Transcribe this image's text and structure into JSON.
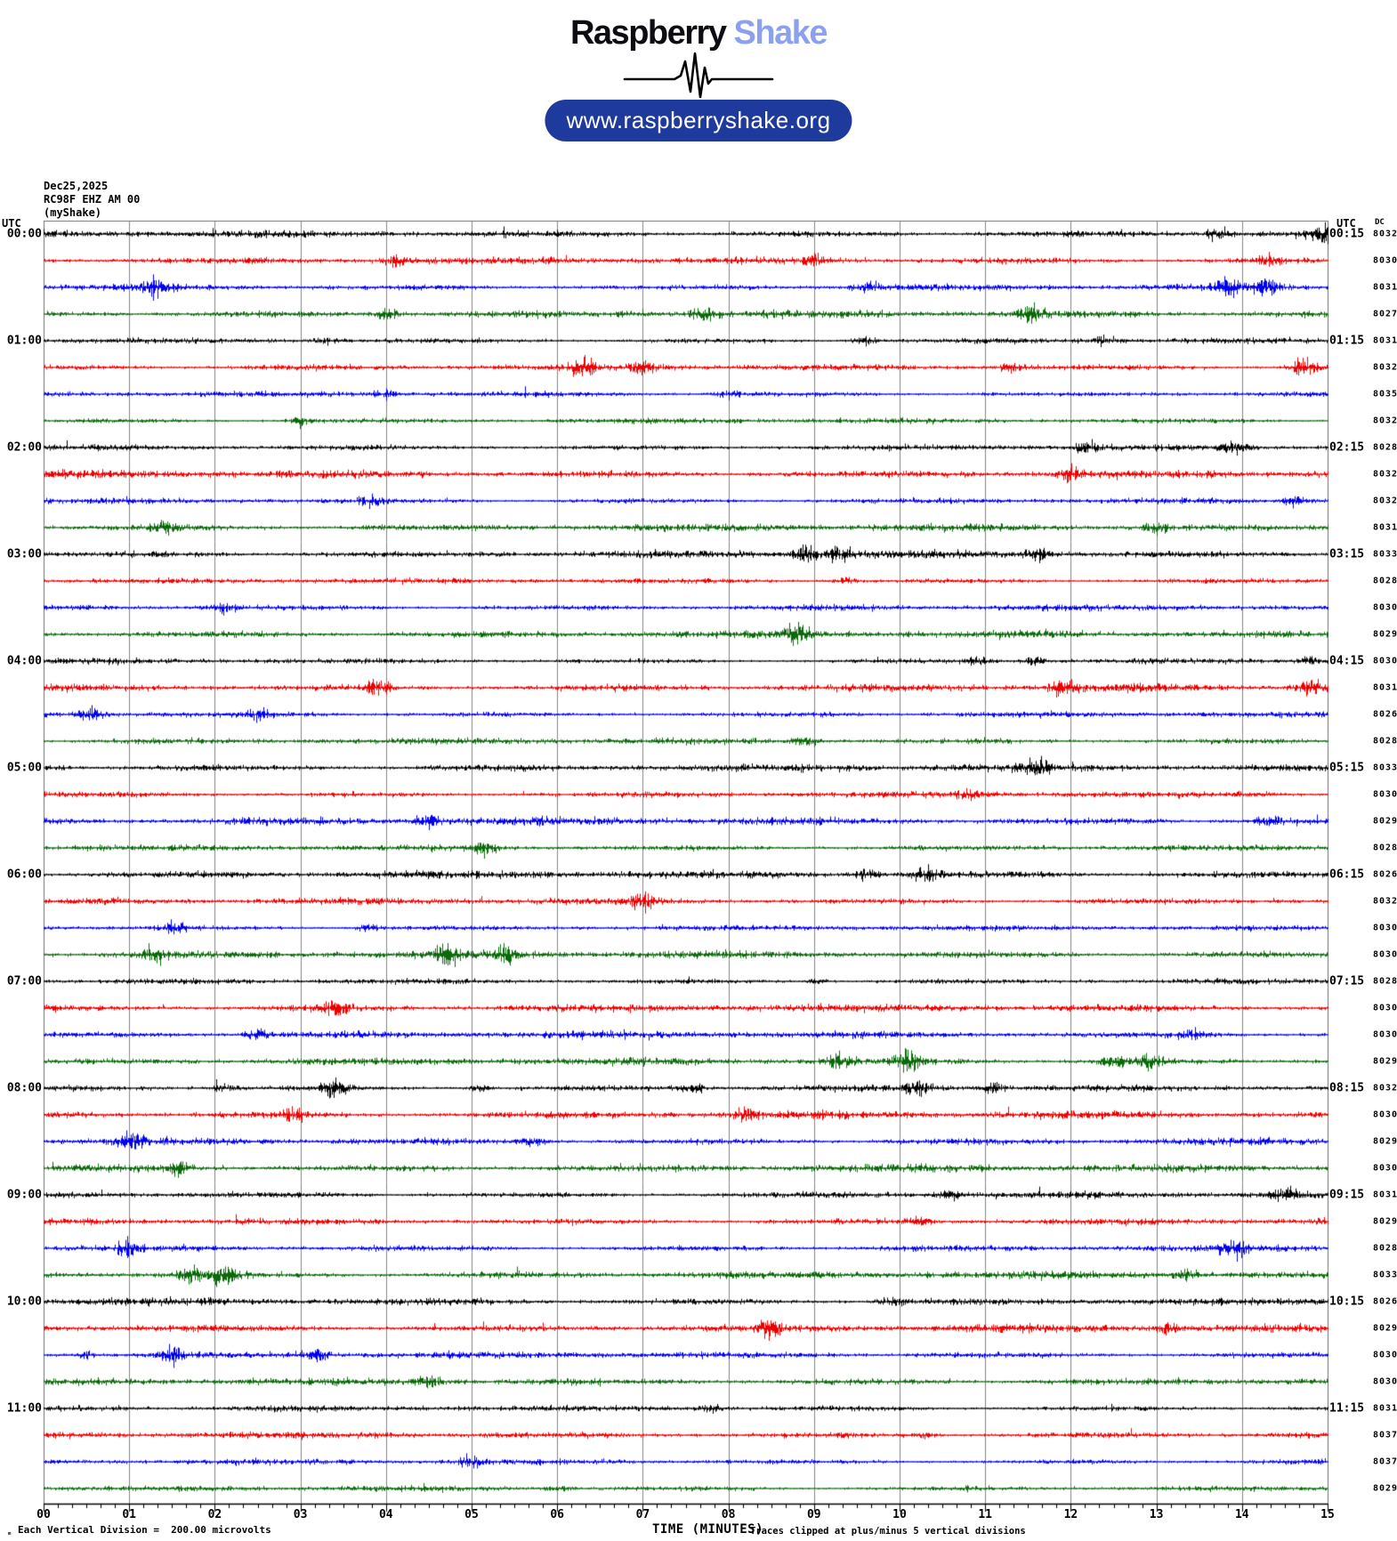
{
  "header": {
    "logo_primary": "Raspberry",
    "logo_secondary": " Shake",
    "url_label": "www.raspberryshake.org",
    "colors": {
      "logo_primary": "#0c0c12",
      "logo_secondary": "#8ba0ee",
      "pill_bg": "#1e3a9c",
      "pill_text": "#ffffff"
    }
  },
  "station": {
    "date": "Dec25,2025",
    "id_line": "RC98F EHZ AM 00",
    "network": "(myShake)"
  },
  "axes": {
    "utc_left_header": "UTC",
    "utc_right_header": "UTC",
    "dc_header": "DC",
    "left_times": [
      "00:00",
      "01:00",
      "02:00",
      "03:00",
      "04:00",
      "05:00",
      "06:00",
      "07:00",
      "08:00",
      "09:00",
      "10:00",
      "11:00"
    ],
    "right_times": [
      "00:15",
      "01:15",
      "02:15",
      "03:15",
      "04:15",
      "05:15",
      "06:15",
      "07:15",
      "08:15",
      "09:15",
      "10:15",
      "11:15"
    ],
    "x_ticks": [
      "00",
      "01",
      "02",
      "03",
      "04",
      "05",
      "06",
      "07",
      "08",
      "09",
      "10",
      "11",
      "12",
      "13",
      "14",
      "15"
    ]
  },
  "footer": {
    "scale_mark": "ₘ",
    "scale_note": "Each Vertical Division =  200.00 microvolts",
    "x_axis_title": "TIME (MINUTES)",
    "clip_note": "Traces clipped at plus/minus 5 vertical divisions"
  },
  "chart_data": {
    "type": "line",
    "variant": "helicorder-seismogram",
    "title": "RC98F EHZ AM 00",
    "date": "Dec25,2025",
    "xlabel": "TIME (MINUTES)",
    "xlim": [
      0,
      15
    ],
    "minutes_per_row": 15,
    "rows_count": 48,
    "utc_span": [
      "00:00",
      "12:00"
    ],
    "grid": "vertical-every-minute",
    "minor_ticks_seconds": 10,
    "scale_microvolts_per_division": 200.0,
    "clip_divisions": 5,
    "trace_color_cycle": [
      "black",
      "red",
      "blue",
      "green"
    ],
    "palette": {
      "black": "#000000",
      "red": "#ee0000",
      "blue": "#0000ee",
      "green": "#0a6a0a",
      "grid": "#848484",
      "border": "#707070"
    },
    "rows": [
      {
        "start": "00:00",
        "color": "black",
        "dc": 8032,
        "bursts": [
          [
            13.7,
            3.0
          ],
          [
            14.9,
            2.5
          ]
        ]
      },
      {
        "start": "00:15",
        "color": "red",
        "dc": 8030,
        "bursts": [
          [
            4.1,
            2.0
          ],
          [
            9.0,
            2.0
          ],
          [
            14.3,
            2.0
          ]
        ]
      },
      {
        "start": "00:30",
        "color": "blue",
        "dc": 8031,
        "bursts": [
          [
            1.3,
            2.5
          ],
          [
            9.6,
            2.0
          ],
          [
            13.8,
            2.5
          ],
          [
            14.3,
            3.0
          ]
        ]
      },
      {
        "start": "00:45",
        "color": "green",
        "dc": 8027,
        "bursts": [
          [
            4.0,
            2.8
          ],
          [
            7.7,
            2.0
          ],
          [
            11.5,
            2.2
          ]
        ]
      },
      {
        "start": "01:00",
        "color": "black",
        "dc": 8031,
        "bursts": [
          [
            3.3,
            2.2
          ],
          [
            9.6,
            2.0
          ],
          [
            12.4,
            2.2
          ]
        ]
      },
      {
        "start": "01:15",
        "color": "red",
        "dc": 8032,
        "bursts": [
          [
            6.3,
            2.2
          ],
          [
            7.0,
            2.0
          ],
          [
            11.3,
            2.5
          ],
          [
            14.7,
            5.5
          ]
        ]
      },
      {
        "start": "01:30",
        "color": "blue",
        "dc": 8035,
        "bursts": [
          [
            4.0,
            2.0
          ],
          [
            8.0,
            1.8
          ]
        ]
      },
      {
        "start": "01:45",
        "color": "green",
        "dc": 8032,
        "bursts": [
          [
            3.0,
            2.5
          ]
        ]
      },
      {
        "start": "02:00",
        "color": "black",
        "dc": 8028,
        "bursts": [
          [
            12.2,
            2.5
          ],
          [
            13.9,
            2.2
          ]
        ]
      },
      {
        "start": "02:15",
        "color": "red",
        "dc": 8032,
        "bursts": [
          [
            12.0,
            1.8
          ]
        ]
      },
      {
        "start": "02:30",
        "color": "blue",
        "dc": 8032,
        "bursts": [
          [
            3.8,
            1.8
          ],
          [
            14.6,
            3.0
          ]
        ]
      },
      {
        "start": "02:45",
        "color": "green",
        "dc": 8031,
        "bursts": [
          [
            1.4,
            1.8
          ],
          [
            13.0,
            1.8
          ]
        ]
      },
      {
        "start": "03:00",
        "color": "black",
        "dc": 8033,
        "bursts": [
          [
            8.9,
            3.2
          ],
          [
            9.3,
            2.5
          ],
          [
            11.6,
            2.2
          ]
        ]
      },
      {
        "start": "03:15",
        "color": "red",
        "dc": 8028,
        "bursts": [
          [
            9.4,
            2.8
          ]
        ]
      },
      {
        "start": "03:30",
        "color": "blue",
        "dc": 8030,
        "bursts": [
          [
            2.1,
            2.2
          ]
        ]
      },
      {
        "start": "03:45",
        "color": "green",
        "dc": 8029,
        "bursts": [
          [
            8.8,
            2.5
          ]
        ]
      },
      {
        "start": "04:00",
        "color": "black",
        "dc": 8030,
        "bursts": [
          [
            10.9,
            2.2
          ],
          [
            11.6,
            2.5
          ],
          [
            14.8,
            2.0
          ]
        ]
      },
      {
        "start": "04:15",
        "color": "red",
        "dc": 8031,
        "bursts": [
          [
            3.9,
            2.5
          ],
          [
            11.9,
            2.2
          ],
          [
            14.8,
            3.5
          ]
        ]
      },
      {
        "start": "04:30",
        "color": "blue",
        "dc": 8026,
        "bursts": [
          [
            0.55,
            3.5
          ],
          [
            2.5,
            2.0
          ]
        ]
      },
      {
        "start": "04:45",
        "color": "green",
        "dc": 8028,
        "bursts": [
          [
            8.9,
            2.2
          ]
        ]
      },
      {
        "start": "05:00",
        "color": "black",
        "dc": 8033,
        "bursts": [
          [
            11.6,
            1.8
          ]
        ]
      },
      {
        "start": "05:15",
        "color": "red",
        "dc": 8030,
        "bursts": [
          [
            10.8,
            1.8
          ]
        ]
      },
      {
        "start": "05:30",
        "color": "blue",
        "dc": 8029,
        "bursts": [
          [
            4.5,
            2.0
          ],
          [
            14.3,
            2.2
          ]
        ]
      },
      {
        "start": "05:45",
        "color": "green",
        "dc": 8028,
        "bursts": [
          [
            5.15,
            2.8
          ]
        ]
      },
      {
        "start": "06:00",
        "color": "black",
        "dc": 8026,
        "bursts": [
          [
            9.6,
            2.0
          ],
          [
            10.3,
            2.0
          ]
        ]
      },
      {
        "start": "06:15",
        "color": "red",
        "dc": 8032,
        "bursts": [
          [
            7.0,
            2.2
          ]
        ]
      },
      {
        "start": "06:30",
        "color": "blue",
        "dc": 8030,
        "bursts": [
          [
            1.5,
            2.2
          ],
          [
            3.8,
            2.2
          ]
        ]
      },
      {
        "start": "06:45",
        "color": "green",
        "dc": 8030,
        "bursts": [
          [
            1.3,
            2.0
          ],
          [
            4.7,
            2.2
          ],
          [
            5.4,
            2.2
          ]
        ]
      },
      {
        "start": "07:00",
        "color": "black",
        "dc": 8028,
        "bursts": [
          [
            9.0,
            1.8
          ]
        ]
      },
      {
        "start": "07:15",
        "color": "red",
        "dc": 8030,
        "bursts": [
          [
            3.4,
            2.2
          ]
        ]
      },
      {
        "start": "07:30",
        "color": "blue",
        "dc": 8030,
        "bursts": [
          [
            2.5,
            2.0
          ],
          [
            13.4,
            2.2
          ]
        ]
      },
      {
        "start": "07:45",
        "color": "green",
        "dc": 8029,
        "bursts": [
          [
            9.3,
            2.8
          ],
          [
            10.1,
            2.5
          ],
          [
            12.5,
            2.5
          ],
          [
            12.9,
            2.2
          ]
        ]
      },
      {
        "start": "08:00",
        "color": "black",
        "dc": 8032,
        "bursts": [
          [
            2.1,
            2.5
          ],
          [
            3.4,
            2.8
          ],
          [
            5.1,
            2.2
          ],
          [
            7.6,
            2.8
          ],
          [
            10.2,
            2.5
          ],
          [
            11.1,
            2.2
          ]
        ]
      },
      {
        "start": "08:15",
        "color": "red",
        "dc": 8030,
        "bursts": [
          [
            2.9,
            2.2
          ],
          [
            8.2,
            2.0
          ]
        ]
      },
      {
        "start": "08:30",
        "color": "blue",
        "dc": 8029,
        "bursts": [
          [
            1.0,
            2.2
          ],
          [
            5.7,
            2.0
          ]
        ]
      },
      {
        "start": "08:45",
        "color": "green",
        "dc": 8030,
        "bursts": [
          [
            1.6,
            2.2
          ]
        ]
      },
      {
        "start": "09:00",
        "color": "black",
        "dc": 8031,
        "bursts": [
          [
            10.6,
            2.2
          ],
          [
            14.5,
            2.2
          ]
        ]
      },
      {
        "start": "09:15",
        "color": "red",
        "dc": 8029,
        "bursts": [
          [
            10.2,
            2.0
          ]
        ]
      },
      {
        "start": "09:30",
        "color": "blue",
        "dc": 8028,
        "bursts": [
          [
            1.0,
            2.0
          ],
          [
            13.9,
            2.5
          ]
        ]
      },
      {
        "start": "09:45",
        "color": "green",
        "dc": 8033,
        "bursts": [
          [
            1.7,
            3.0
          ],
          [
            2.1,
            2.8
          ],
          [
            13.3,
            2.2
          ]
        ]
      },
      {
        "start": "10:00",
        "color": "black",
        "dc": 8026,
        "bursts": [
          [
            9.9,
            1.8
          ]
        ]
      },
      {
        "start": "10:15",
        "color": "red",
        "dc": 8029,
        "bursts": [
          [
            8.5,
            2.0
          ],
          [
            13.1,
            2.0
          ]
        ]
      },
      {
        "start": "10:30",
        "color": "blue",
        "dc": 8030,
        "bursts": [
          [
            0.5,
            2.2
          ],
          [
            1.5,
            2.5
          ],
          [
            3.2,
            2.5
          ]
        ]
      },
      {
        "start": "10:45",
        "color": "green",
        "dc": 8030,
        "bursts": [
          [
            4.5,
            2.8
          ]
        ]
      },
      {
        "start": "11:00",
        "color": "black",
        "dc": 8031,
        "bursts": [
          [
            7.8,
            1.8
          ]
        ]
      },
      {
        "start": "11:15",
        "color": "red",
        "dc": 8037,
        "bursts": [
          [
            10.3,
            2.0
          ]
        ]
      },
      {
        "start": "11:30",
        "color": "blue",
        "dc": 8037,
        "bursts": [
          [
            5.0,
            2.0
          ]
        ]
      },
      {
        "start": "11:45",
        "color": "green",
        "dc": 8029,
        "bursts": [
          [
            6.0,
            1.8
          ]
        ]
      }
    ]
  }
}
